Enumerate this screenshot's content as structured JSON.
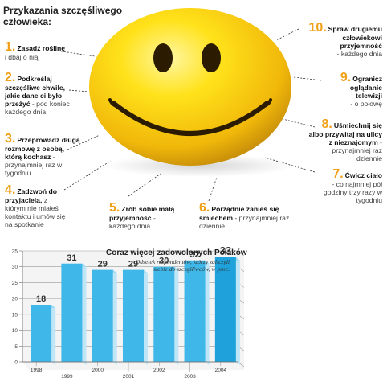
{
  "title": "Przykazania szczęśliwego człowieka:",
  "tips": [
    {
      "num": "1.",
      "bold": "Zasadź roślinę",
      "rest": "i dbaj o nią"
    },
    {
      "num": "2.",
      "bold": "Podkreślaj szczęśliwe chwile, jakie dane ci było przeżyć",
      "rest": "- pod koniec każdego dnia"
    },
    {
      "num": "3.",
      "bold": "Przeprowadź długą rozmowę z osobą, którą kochasz",
      "rest": "- przynajmniej raz w tygodniu"
    },
    {
      "num": "4.",
      "bold": "Zadzwoń do przyjaciela,",
      "rest": "z którym nie miałeś kontaktu i umów się na spotkanie"
    },
    {
      "num": "5.",
      "bold": "Zrób sobie małą przyjemność",
      "rest": "- każdego dnia"
    },
    {
      "num": "6.",
      "bold": "Porządnie zanieś się śmiechem",
      "rest": "- przynajmniej raz dziennie"
    },
    {
      "num": "7.",
      "bold": "Ćwicz ciało",
      "rest": "- co najmniej pół godziny trzy razy w tygodniu"
    },
    {
      "num": "8.",
      "bold": "Uśmiechnij się albo przywitaj na ulicy z nieznajomym",
      "rest": "- przynajmniej raz dziennie"
    },
    {
      "num": "9.",
      "bold": "Ogranicz oglądanie telewizji",
      "rest": "- o połowę"
    },
    {
      "num": "10.",
      "bold": "Spraw drugiemu człowiekowi przyjemność",
      "rest": "- każdego dnia"
    }
  ],
  "chart_data": {
    "type": "bar",
    "title": "Coraz więcej zadowolonych Polaków",
    "subtitle": "Odsetek respondentów, którzy zaliczyli siebie do szczęśliwców, w proc.",
    "categories": [
      "1998",
      "1999",
      "2000",
      "2001",
      "2002",
      "2003",
      "2004"
    ],
    "values": [
      18,
      31,
      29,
      29,
      30,
      32,
      33
    ],
    "ylim": [
      0,
      35
    ],
    "yticks": [
      0,
      5,
      10,
      15,
      20,
      25,
      30,
      35
    ],
    "grid": true,
    "colors": {
      "bar": "#3fb7e8",
      "bar_last": "#1fa2dc",
      "bar_side": "#bfe6f7",
      "accent": "#f0a018"
    }
  }
}
